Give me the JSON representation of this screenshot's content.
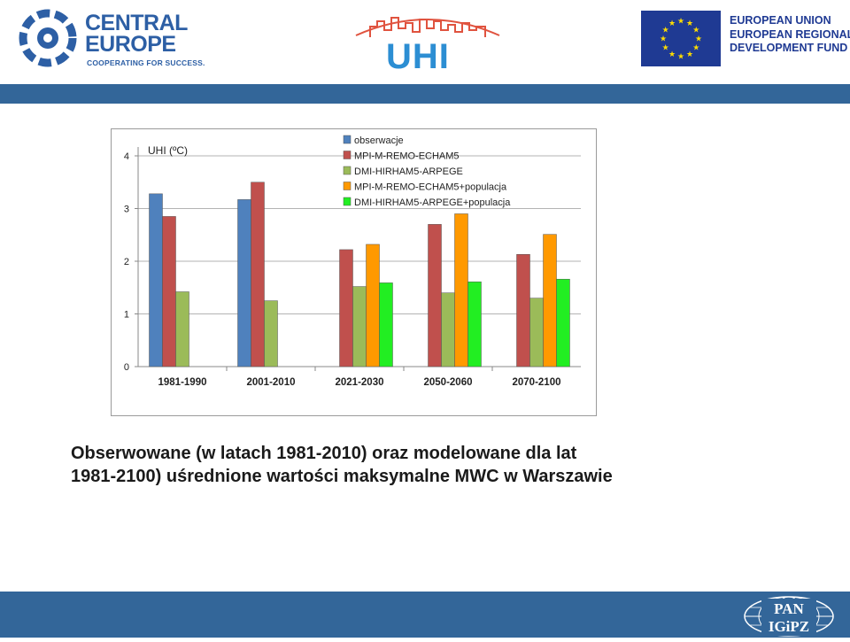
{
  "header": {
    "central_europe": {
      "line1": "CENTRAL",
      "line2": "EUROPE",
      "tagline": "COOPERATING FOR SUCCESS."
    },
    "uhi_logo": {
      "text": "UHI"
    },
    "eu_logo": {
      "line1": "EUROPEAN UNION",
      "line2": "EUROPEAN REGIONAL",
      "line3": "DEVELOPMENT FUND"
    }
  },
  "colors": {
    "bar_blue": "#336699",
    "brand_blue": "#2d5fa5",
    "eu_blue": "#1f3a93",
    "uhi_blue": "#2c8ed3"
  },
  "chart_data": {
    "type": "bar",
    "ylabel": "UHI (ºC)",
    "ylim": [
      0,
      4
    ],
    "yticks": [
      0,
      1,
      2,
      3,
      4
    ],
    "grid": true,
    "legend_position": "top",
    "categories": [
      "1981-1990",
      "2001-2010",
      "2021-2030",
      "2050-2060",
      "2070-2100"
    ],
    "series": [
      {
        "name": "obserwacje",
        "color": "#4f81bd",
        "values": [
          3.28,
          3.17,
          null,
          null,
          null
        ]
      },
      {
        "name": "MPI-M-REMO-ECHAM5",
        "color": "#c0504d",
        "values": [
          2.85,
          3.5,
          2.22,
          2.7,
          2.13
        ]
      },
      {
        "name": "DMI-HIRHAM5-ARPEGE",
        "color": "#9bbb59",
        "values": [
          1.42,
          1.25,
          1.52,
          1.4,
          1.3
        ]
      },
      {
        "name": "MPI-M-REMO-ECHAM5+populacja",
        "color": "#ff9900",
        "values": [
          null,
          null,
          2.32,
          2.9,
          2.51
        ]
      },
      {
        "name": "DMI-HIRHAM5-ARPEGE+populacja",
        "color": "#22ee22",
        "values": [
          null,
          null,
          1.59,
          1.61,
          1.66
        ]
      }
    ]
  },
  "caption": {
    "line1": "Obserwowane (w latach 1981-2010) oraz modelowane  dla lat",
    "line2": "1981-2100) uśrednione wartości maksymalne MWC w Warszawie"
  },
  "footer": {
    "pan_logo": {
      "line1": "PAN",
      "line2": "IGiPZ"
    }
  }
}
